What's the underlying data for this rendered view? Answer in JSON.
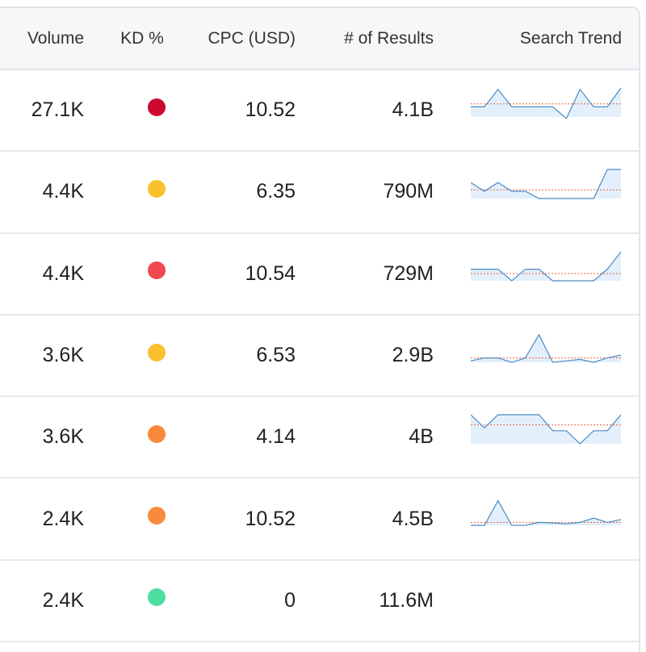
{
  "columns": {
    "volume": "Volume",
    "kd": "KD %",
    "cpc": "CPC (USD)",
    "results": "# of Results",
    "trend": "Search Trend"
  },
  "rows": [
    {
      "volume": "27.1K",
      "kd_color": "#cc0a2f",
      "kd_level": "very-hard",
      "cpc": "10.52",
      "results": "4.1B",
      "trend": [
        0.35,
        0.35,
        0.95,
        0.35,
        0.35,
        0.35,
        0.35,
        -0.05,
        0.95,
        0.35,
        0.35,
        1.0
      ],
      "trend_avg": 0.45
    },
    {
      "volume": "4.4K",
      "kd_color": "#fbc02d",
      "kd_level": "possible",
      "cpc": "6.35",
      "results": "790M",
      "trend": [
        0.55,
        0.25,
        0.55,
        0.25,
        0.25,
        0.0,
        0.0,
        0.0,
        0.0,
        0.0,
        1.0,
        1.0
      ],
      "trend_avg": 0.3
    },
    {
      "volume": "4.4K",
      "kd_color": "#f2484f",
      "kd_level": "hard",
      "cpc": "10.54",
      "results": "729M",
      "trend": [
        0.4,
        0.4,
        0.4,
        0.0,
        0.4,
        0.4,
        0.0,
        0.0,
        0.0,
        0.0,
        0.4,
        1.0
      ],
      "trend_avg": 0.25
    },
    {
      "volume": "3.6K",
      "kd_color": "#fbc02d",
      "kd_level": "possible",
      "cpc": "6.53",
      "results": "2.9B",
      "trend": [
        0.05,
        0.15,
        0.15,
        0.0,
        0.15,
        0.95,
        0.0,
        0.05,
        0.1,
        0.0,
        0.15,
        0.25
      ],
      "trend_avg": 0.15
    },
    {
      "volume": "3.6K",
      "kd_color": "#f98a3c",
      "kd_level": "difficult",
      "cpc": "4.14",
      "results": "4B",
      "trend": [
        1.0,
        0.55,
        1.0,
        1.0,
        1.0,
        1.0,
        0.45,
        0.45,
        0.0,
        0.45,
        0.45,
        1.0
      ],
      "trend_avg": 0.65
    },
    {
      "volume": "2.4K",
      "kd_color": "#f98a3c",
      "kd_level": "difficult",
      "cpc": "10.52",
      "results": "4.5B",
      "trend": [
        0.0,
        0.0,
        0.85,
        0.0,
        0.0,
        0.1,
        0.08,
        0.05,
        0.1,
        0.25,
        0.1,
        0.2
      ],
      "trend_avg": 0.1
    },
    {
      "volume": "2.4K",
      "kd_color": "#4ddca1",
      "kd_level": "easy",
      "cpc": "0",
      "results": "11.6M",
      "trend": [],
      "trend_avg": null
    }
  ]
}
